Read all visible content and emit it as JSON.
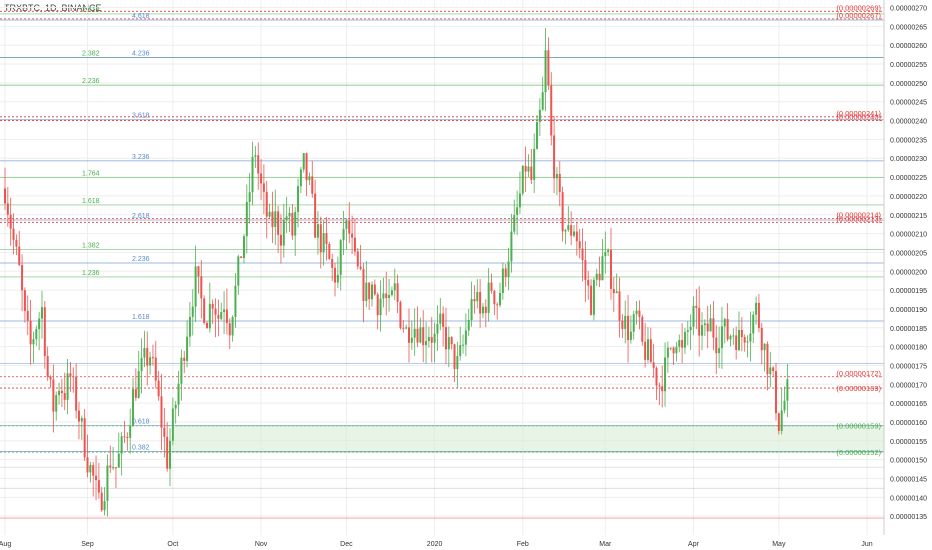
{
  "ticker": "TRXBTC, 1D, BINANCE",
  "colors": {
    "up": "#4caf50",
    "down": "#ef5350",
    "fibGreen": "#4caf50",
    "fibBlue": "#5b8bd0",
    "fibRed": "#e53935",
    "grid": "#eeeeee",
    "zone": "#d8ecd3"
  },
  "chart_data": {
    "type": "candlestick",
    "ylim": [
      1.3e-06,
      2.72e-06
    ],
    "y_ticks": [
      "0.00000135",
      "0.00000140",
      "0.00000145",
      "0.00000150",
      "0.00000155",
      "0.00000160",
      "0.00000165",
      "0.00000170",
      "0.00000175",
      "0.00000180",
      "0.00000185",
      "0.00000190",
      "0.00000195",
      "0.00000200",
      "0.00000205",
      "0.00000210",
      "0.00000215",
      "0.00000220",
      "0.00000225",
      "0.00000230",
      "0.00000235",
      "0.00000240",
      "0.00000245",
      "0.00000250",
      "0.00000255",
      "0.00000260",
      "0.00000265",
      "0.00000270"
    ],
    "x_labels": [
      {
        "t": "Aug",
        "day": 0
      },
      {
        "t": "Sep",
        "day": 29
      },
      {
        "t": "Oct",
        "day": 59
      },
      {
        "t": "Nov",
        "day": 90
      },
      {
        "t": "Dec",
        "day": 120
      },
      {
        "t": "2020",
        "day": 151
      },
      {
        "t": "Feb",
        "day": 182
      },
      {
        "t": "Mar",
        "day": 211
      },
      {
        "t": "Apr",
        "day": 242
      },
      {
        "t": "May",
        "day": 272
      },
      {
        "t": "Jun",
        "day": 303
      }
    ],
    "price_lines": [
      {
        "label": "(0.00000269)",
        "value": 2.69e-06,
        "color": "red"
      },
      {
        "label": "(0.00000267)",
        "value": 2.67e-06,
        "color": "red"
      },
      {
        "label": "(0.00000241)",
        "value": 2.41e-06,
        "color": "red"
      },
      {
        "label": "(0.00000240)",
        "value": 2.4e-06,
        "color": "red"
      },
      {
        "label": "(0.00000214)",
        "value": 2.14e-06,
        "color": "red"
      },
      {
        "label": "(0.00000213)",
        "value": 2.13e-06,
        "color": "red"
      },
      {
        "label": "(0.00000172)",
        "value": 1.72e-06,
        "color": "red"
      },
      {
        "label": "(0.00000169)",
        "value": 1.69e-06,
        "color": "red"
      },
      {
        "label": "(0.00000159)",
        "value": 1.59e-06,
        "color": "green"
      },
      {
        "label": "(0.00000152)",
        "value": 1.52e-06,
        "color": "green"
      }
    ],
    "fib_labels": [
      {
        "t": "2.618",
        "value": 2.683e-06,
        "color": "green",
        "col": "a"
      },
      {
        "t": "4.618",
        "value": 2.667e-06,
        "color": "blue",
        "col": "b"
      },
      {
        "t": "2.382",
        "value": 2.567e-06,
        "color": "green",
        "col": "a"
      },
      {
        "t": "4.236",
        "value": 2.567e-06,
        "color": "blue",
        "col": "b"
      },
      {
        "t": "2.236",
        "value": 2.494e-06,
        "color": "green",
        "col": "a"
      },
      {
        "t": "3.618",
        "value": 2.403e-06,
        "color": "blue",
        "col": "b"
      },
      {
        "t": "3.236",
        "value": 2.293e-06,
        "color": "blue",
        "col": "b"
      },
      {
        "t": "1.764",
        "value": 2.249e-06,
        "color": "green",
        "col": "a"
      },
      {
        "t": "1.618",
        "value": 2.176e-06,
        "color": "green",
        "col": "a"
      },
      {
        "t": "2.618",
        "value": 2.136e-06,
        "color": "blue",
        "col": "b"
      },
      {
        "t": "1.382",
        "value": 2.058e-06,
        "color": "green",
        "col": "a"
      },
      {
        "t": "2.236",
        "value": 2.022e-06,
        "color": "blue",
        "col": "b"
      },
      {
        "t": "1.236",
        "value": 1.985e-06,
        "color": "green",
        "col": "a"
      },
      {
        "t": "1.618",
        "value": 1.868e-06,
        "color": "blue",
        "col": "b"
      },
      {
        "t": "0.618",
        "value": 1.59e-06,
        "color": "blue",
        "col": "b"
      },
      {
        "t": "0.382",
        "value": 1.522e-06,
        "color": "blue",
        "col": "b"
      }
    ],
    "extra_lines": [
      {
        "value": 1.755e-06,
        "color": "blue"
      },
      {
        "value": 1.48e-06,
        "color": "grey"
      },
      {
        "value": 1.424e-06,
        "color": "grey"
      },
      {
        "value": 1.345e-06,
        "color": "red"
      }
    ],
    "zone": {
      "from": 1.52e-06,
      "to": 1.59e-06,
      "day_start": 59
    },
    "price_path": [
      {
        "day": 0,
        "p": 2.22e-06
      },
      {
        "day": 3,
        "p": 2.08e-06
      },
      {
        "day": 5,
        "p": 2e-06
      },
      {
        "day": 7,
        "p": 1.87e-06
      },
      {
        "day": 9,
        "p": 1.8e-06
      },
      {
        "day": 11,
        "p": 1.86e-06
      },
      {
        "day": 13,
        "p": 1.9e-06
      },
      {
        "day": 15,
        "p": 1.72e-06
      },
      {
        "day": 17,
        "p": 1.64e-06
      },
      {
        "day": 19,
        "p": 1.7e-06
      },
      {
        "day": 21,
        "p": 1.68e-06
      },
      {
        "day": 23,
        "p": 1.72e-06
      },
      {
        "day": 25,
        "p": 1.65e-06
      },
      {
        "day": 27,
        "p": 1.58e-06
      },
      {
        "day": 29,
        "p": 1.5e-06
      },
      {
        "day": 31,
        "p": 1.45e-06
      },
      {
        "day": 33,
        "p": 1.38e-06
      },
      {
        "day": 35,
        "p": 1.43e-06
      },
      {
        "day": 37,
        "p": 1.5e-06
      },
      {
        "day": 39,
        "p": 1.48e-06
      },
      {
        "day": 41,
        "p": 1.53e-06
      },
      {
        "day": 43,
        "p": 1.58e-06
      },
      {
        "day": 45,
        "p": 1.67e-06
      },
      {
        "day": 47,
        "p": 1.72e-06
      },
      {
        "day": 49,
        "p": 1.76e-06
      },
      {
        "day": 51,
        "p": 1.78e-06
      },
      {
        "day": 53,
        "p": 1.7e-06
      },
      {
        "day": 55,
        "p": 1.6e-06
      },
      {
        "day": 57,
        "p": 1.5e-06
      },
      {
        "day": 59,
        "p": 1.6e-06
      },
      {
        "day": 61,
        "p": 1.7e-06
      },
      {
        "day": 63,
        "p": 1.8e-06
      },
      {
        "day": 65,
        "p": 1.9e-06
      },
      {
        "day": 67,
        "p": 1.98e-06
      },
      {
        "day": 69,
        "p": 1.92e-06
      },
      {
        "day": 71,
        "p": 1.88e-06
      },
      {
        "day": 73,
        "p": 1.93e-06
      },
      {
        "day": 75,
        "p": 1.88e-06
      },
      {
        "day": 77,
        "p": 1.92e-06
      },
      {
        "day": 79,
        "p": 1.86e-06
      },
      {
        "day": 81,
        "p": 1.95e-06
      },
      {
        "day": 83,
        "p": 2.05e-06
      },
      {
        "day": 85,
        "p": 2.15e-06
      },
      {
        "day": 87,
        "p": 2.28e-06
      },
      {
        "day": 88,
        "p": 2.32e-06
      },
      {
        "day": 89,
        "p": 2.26e-06
      },
      {
        "day": 91,
        "p": 2.18e-06
      },
      {
        "day": 93,
        "p": 2.12e-06
      },
      {
        "day": 95,
        "p": 2.14e-06
      },
      {
        "day": 97,
        "p": 2.1e-06
      },
      {
        "day": 99,
        "p": 2.15e-06
      },
      {
        "day": 101,
        "p": 2.1e-06
      },
      {
        "day": 103,
        "p": 2.2e-06
      },
      {
        "day": 105,
        "p": 2.28e-06
      },
      {
        "day": 107,
        "p": 2.22e-06
      },
      {
        "day": 109,
        "p": 2.12e-06
      },
      {
        "day": 111,
        "p": 2.08e-06
      },
      {
        "day": 113,
        "p": 2.05e-06
      },
      {
        "day": 115,
        "p": 2e-06
      },
      {
        "day": 117,
        "p": 1.98e-06
      },
      {
        "day": 119,
        "p": 2.12e-06
      },
      {
        "day": 121,
        "p": 2.1e-06
      },
      {
        "day": 123,
        "p": 2.02e-06
      },
      {
        "day": 125,
        "p": 1.97e-06
      },
      {
        "day": 127,
        "p": 1.94e-06
      },
      {
        "day": 129,
        "p": 1.96e-06
      },
      {
        "day": 131,
        "p": 1.92e-06
      },
      {
        "day": 133,
        "p": 1.94e-06
      },
      {
        "day": 135,
        "p": 1.9e-06
      },
      {
        "day": 137,
        "p": 1.95e-06
      },
      {
        "day": 139,
        "p": 1.88e-06
      },
      {
        "day": 141,
        "p": 1.84e-06
      },
      {
        "day": 143,
        "p": 1.86e-06
      },
      {
        "day": 145,
        "p": 1.85e-06
      },
      {
        "day": 147,
        "p": 1.83e-06
      },
      {
        "day": 149,
        "p": 1.84e-06
      },
      {
        "day": 151,
        "p": 1.82e-06
      },
      {
        "day": 153,
        "p": 1.85e-06
      },
      {
        "day": 155,
        "p": 1.82e-06
      },
      {
        "day": 157,
        "p": 1.78e-06
      },
      {
        "day": 159,
        "p": 1.75e-06
      },
      {
        "day": 161,
        "p": 1.8e-06
      },
      {
        "day": 163,
        "p": 1.88e-06
      },
      {
        "day": 165,
        "p": 1.94e-06
      },
      {
        "day": 167,
        "p": 1.88e-06
      },
      {
        "day": 169,
        "p": 1.92e-06
      },
      {
        "day": 171,
        "p": 1.96e-06
      },
      {
        "day": 173,
        "p": 1.92e-06
      },
      {
        "day": 175,
        "p": 1.98e-06
      },
      {
        "day": 177,
        "p": 2.05e-06
      },
      {
        "day": 179,
        "p": 2.12e-06
      },
      {
        "day": 181,
        "p": 2.2e-06
      },
      {
        "day": 183,
        "p": 2.28e-06
      },
      {
        "day": 185,
        "p": 2.24e-06
      },
      {
        "day": 187,
        "p": 2.36e-06
      },
      {
        "day": 189,
        "p": 2.46e-06
      },
      {
        "day": 190,
        "p": 2.57e-06
      },
      {
        "day": 191,
        "p": 2.48e-06
      },
      {
        "day": 192,
        "p": 2.35e-06
      },
      {
        "day": 194,
        "p": 2.22e-06
      },
      {
        "day": 196,
        "p": 2.13e-06
      },
      {
        "day": 198,
        "p": 2.1e-06
      },
      {
        "day": 200,
        "p": 2.12e-06
      },
      {
        "day": 202,
        "p": 2.06e-06
      },
      {
        "day": 204,
        "p": 1.98e-06
      },
      {
        "day": 206,
        "p": 1.92e-06
      },
      {
        "day": 208,
        "p": 1.98e-06
      },
      {
        "day": 210,
        "p": 2.03e-06
      },
      {
        "day": 212,
        "p": 2.02e-06
      },
      {
        "day": 214,
        "p": 1.96e-06
      },
      {
        "day": 216,
        "p": 1.9e-06
      },
      {
        "day": 218,
        "p": 1.86e-06
      },
      {
        "day": 220,
        "p": 1.83e-06
      },
      {
        "day": 222,
        "p": 1.88e-06
      },
      {
        "day": 224,
        "p": 1.8e-06
      },
      {
        "day": 226,
        "p": 1.78e-06
      },
      {
        "day": 228,
        "p": 1.74e-06
      },
      {
        "day": 230,
        "p": 1.7e-06
      },
      {
        "day": 232,
        "p": 1.74e-06
      },
      {
        "day": 234,
        "p": 1.8e-06
      },
      {
        "day": 236,
        "p": 1.83e-06
      },
      {
        "day": 238,
        "p": 1.78e-06
      },
      {
        "day": 240,
        "p": 1.84e-06
      },
      {
        "day": 242,
        "p": 1.88e-06
      },
      {
        "day": 244,
        "p": 1.85e-06
      },
      {
        "day": 246,
        "p": 1.83e-06
      },
      {
        "day": 248,
        "p": 1.86e-06
      },
      {
        "day": 250,
        "p": 1.82e-06
      },
      {
        "day": 252,
        "p": 1.85e-06
      },
      {
        "day": 254,
        "p": 1.83e-06
      },
      {
        "day": 256,
        "p": 1.84e-06
      },
      {
        "day": 258,
        "p": 1.82e-06
      },
      {
        "day": 260,
        "p": 1.84e-06
      },
      {
        "day": 262,
        "p": 1.86e-06
      },
      {
        "day": 264,
        "p": 1.9e-06
      },
      {
        "day": 266,
        "p": 1.83e-06
      },
      {
        "day": 268,
        "p": 1.76e-06
      },
      {
        "day": 270,
        "p": 1.7e-06
      },
      {
        "day": 272,
        "p": 1.6e-06
      },
      {
        "day": 273,
        "p": 1.63e-06
      },
      {
        "day": 275,
        "p": 1.68e-06
      }
    ]
  }
}
